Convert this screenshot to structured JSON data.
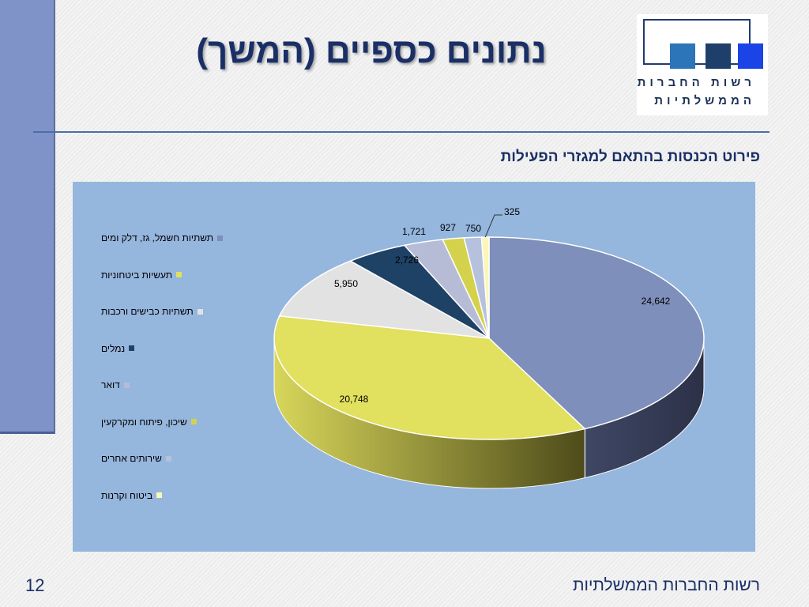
{
  "slide": {
    "title": "נתונים כספיים (המשך)",
    "subtitle": "פירוט הכנסות בהתאם למגזרי הפעילות",
    "page_number": "12",
    "footer": "רשות החברות הממשלתיות"
  },
  "logo": {
    "line1": "רשות החברות",
    "line2": "הממשלתיות",
    "colors": [
      "#2c75b8",
      "#1d3f6a",
      "#1a44e6"
    ]
  },
  "chart_data": {
    "type": "pie",
    "title": "פירוט הכנסות בהתאם למגזרי הפעילות",
    "style": "3d",
    "legend_position": "left",
    "categories": [
      "תשתיות חשמל, גז, דלק ומים",
      "תעשיות ביטחוניות",
      "תשתיות כבישים ורכבות",
      "נמלים",
      "דואר",
      "שיכון, פיתוח ומקרקעין",
      "שירותים אחרים",
      "ביטוח וקרנות"
    ],
    "values": [
      24642,
      20748,
      5950,
      2726,
      1721,
      927,
      750,
      325
    ],
    "labels": [
      "24,642",
      "20,748",
      "5,950",
      "2,726",
      "1,721",
      "927",
      "750",
      "325"
    ],
    "colors": [
      "#7f8fbb",
      "#e1e05f",
      "#e2e2e2",
      "#1e4166",
      "#b7bcd6",
      "#d4d24c",
      "#b6c1dd",
      "#fbf7b6"
    ]
  }
}
